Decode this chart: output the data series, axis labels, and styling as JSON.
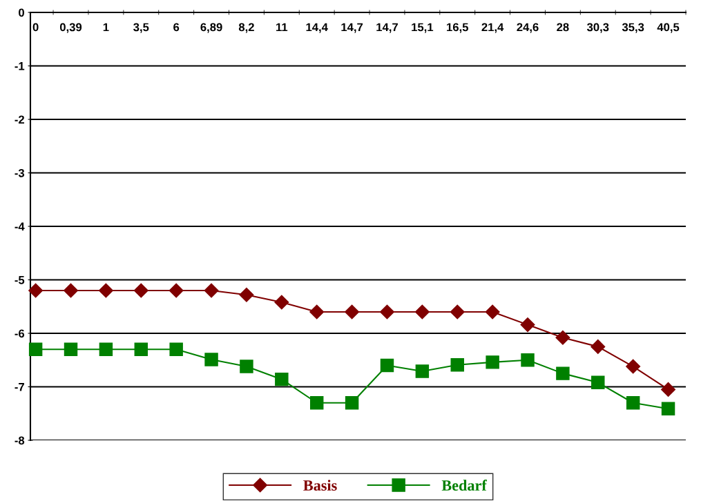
{
  "chart_data": {
    "type": "line",
    "categories": [
      "0",
      "0,39",
      "1",
      "3,5",
      "6",
      "6,89",
      "8,2",
      "11",
      "14,4",
      "14,7",
      "14,7",
      "15,1",
      "16,5",
      "21,4",
      "24,6",
      "28",
      "30,3",
      "35,3",
      "40,5"
    ],
    "series": [
      {
        "name": "Basis",
        "color": "#800000",
        "marker": "diamond",
        "values": [
          -5.2,
          -5.2,
          -5.2,
          -5.2,
          -5.2,
          -5.2,
          -5.28,
          -5.42,
          -5.6,
          -5.6,
          -5.6,
          -5.6,
          -5.6,
          -5.6,
          -5.84,
          -6.08,
          -6.25,
          -6.62,
          -7.05
        ]
      },
      {
        "name": "Bedarf",
        "color": "#008000",
        "marker": "square",
        "values": [
          -6.3,
          -6.3,
          -6.3,
          -6.3,
          -6.3,
          -6.49,
          -6.62,
          -6.86,
          -7.3,
          -7.3,
          -6.6,
          -6.71,
          -6.59,
          -6.54,
          -6.5,
          -6.75,
          -6.92,
          -7.3,
          -7.41
        ]
      }
    ],
    "ylim": [
      -8,
      0
    ],
    "yticks": [
      -8,
      -7,
      -6,
      -5,
      -4,
      -3,
      -2,
      -1,
      0
    ],
    "grid": "y",
    "legend": "bottom",
    "line_style": "solid"
  }
}
